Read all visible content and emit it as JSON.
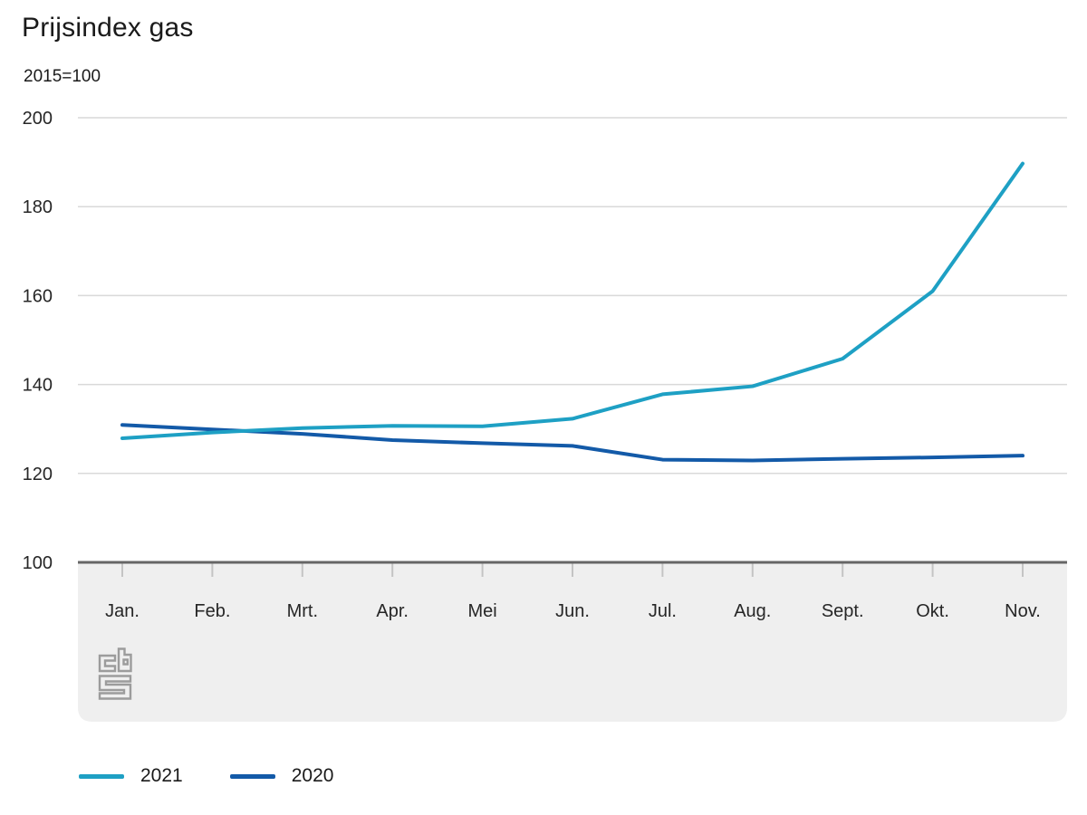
{
  "page": {
    "title": "Prijsindex gas",
    "subtitle": "2015=100"
  },
  "chart_data": {
    "type": "line",
    "title": "Prijsindex gas",
    "subtitle": "2015=100",
    "xlabel": "",
    "ylabel": "2015=100",
    "categories": [
      "Jan.",
      "Feb.",
      "Mrt.",
      "Apr.",
      "Mei",
      "Jun.",
      "Jul.",
      "Aug.",
      "Sept.",
      "Okt.",
      "Nov."
    ],
    "series": [
      {
        "name": "2021",
        "color": "#1ea0c4",
        "values": [
          127.9,
          129.2,
          130.2,
          130.7,
          130.6,
          132.3,
          137.8,
          139.6,
          145.8,
          161.0,
          189.7
        ]
      },
      {
        "name": "2020",
        "color": "#135aa8",
        "values": [
          130.9,
          129.9,
          128.9,
          127.5,
          126.8,
          126.2,
          123.1,
          122.9,
          123.3,
          123.6,
          124.0
        ]
      }
    ],
    "ylim": [
      100,
      200
    ],
    "yticks": [
      100,
      120,
      140,
      160,
      180,
      200
    ],
    "grid": true,
    "legend_position": "bottom"
  },
  "branding": {
    "logo_icon": "cbs-logo"
  },
  "colors": {
    "gridline": "#d9d9d9",
    "axis_line": "#666666",
    "tick": "#c4c4c4",
    "band": "#efefef",
    "logo": "#9c9c9c",
    "label": "#262626"
  }
}
